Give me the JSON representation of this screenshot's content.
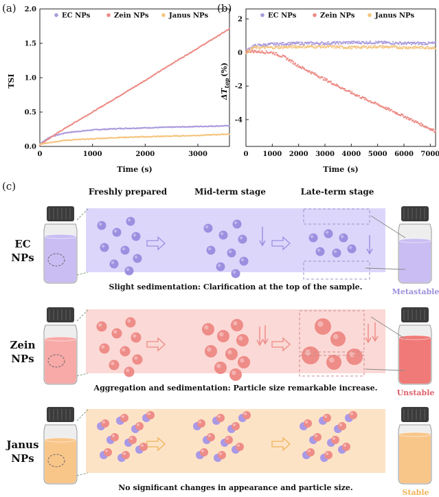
{
  "panel_a": {
    "label": "(a)",
    "chart_data": {
      "type": "line",
      "xlabel": "Time (s)",
      "ylabel": "TSI",
      "xlim": [
        0,
        3600
      ],
      "ylim": [
        0,
        2.0
      ],
      "xticks": [
        0,
        1000,
        2000,
        3000
      ],
      "yticks": [
        0.0,
        0.5,
        1.0,
        1.5,
        2.0
      ],
      "ytick_labels": [
        "0.0",
        "0.5",
        "1.0",
        "1.5",
        "2.0"
      ],
      "series": [
        {
          "name": "EC NPs",
          "color": "#a999dc",
          "x": [
            0,
            200,
            500,
            1000,
            1500,
            2000,
            2500,
            3000,
            3600
          ],
          "y": [
            0.04,
            0.14,
            0.2,
            0.24,
            0.26,
            0.27,
            0.28,
            0.29,
            0.3
          ]
        },
        {
          "name": "Zein NPs",
          "color": "#ec8a84",
          "x": [
            0,
            300,
            600,
            1000,
            1500,
            2000,
            2500,
            3000,
            3600
          ],
          "y": [
            0.02,
            0.18,
            0.32,
            0.5,
            0.73,
            0.96,
            1.2,
            1.43,
            1.71
          ]
        },
        {
          "name": "Janus NPs",
          "color": "#f5c47e",
          "x": [
            0,
            200,
            500,
            1000,
            1500,
            2000,
            2500,
            3000,
            3600
          ],
          "y": [
            0.03,
            0.06,
            0.09,
            0.11,
            0.13,
            0.14,
            0.15,
            0.16,
            0.18
          ]
        }
      ],
      "legend": [
        "EC NPs",
        "Zein NPs",
        "Janus NPs"
      ]
    }
  },
  "panel_b": {
    "label": "(b)",
    "chart_data": {
      "type": "scatter",
      "xlabel": "Time (s)",
      "ylabel_main": "ΔT",
      "ylabel_sub": "top",
      "ylabel_unit": "(%)",
      "xlim": [
        0,
        7200
      ],
      "ylim": [
        -5.6,
        2.6
      ],
      "xticks": [
        0,
        1000,
        2000,
        3000,
        4000,
        5000,
        6000,
        7000
      ],
      "yticks": [
        -4,
        -2,
        0,
        2
      ],
      "series": [
        {
          "name": "EC NPs",
          "color": "#a999dc",
          "x": [
            0,
            300,
            1000,
            2000,
            3000,
            4000,
            5000,
            6000,
            7200
          ],
          "y": [
            0.1,
            0.4,
            0.5,
            0.55,
            0.55,
            0.6,
            0.6,
            0.55,
            0.55
          ]
        },
        {
          "name": "Zein NPs",
          "color": "#ec8a84",
          "x": [
            0,
            500,
            1000,
            1500,
            2000,
            3000,
            4000,
            5000,
            6000,
            7200
          ],
          "y": [
            0.1,
            0.05,
            0.0,
            -0.3,
            -0.8,
            -1.6,
            -2.4,
            -3.1,
            -3.8,
            -4.7
          ]
        },
        {
          "name": "Janus NPs",
          "color": "#f5c47e",
          "x": [
            0,
            300,
            1000,
            2000,
            3000,
            4000,
            5000,
            6000,
            7200
          ],
          "y": [
            0.0,
            0.3,
            0.3,
            0.35,
            0.35,
            0.3,
            0.35,
            0.3,
            0.3
          ]
        }
      ],
      "legend": [
        "EC NPs",
        "Zein NPs",
        "Janus NPs"
      ]
    }
  },
  "panel_c": {
    "label": "(c)",
    "stages": [
      "Freshly prepared",
      "Mid-term stage",
      "Late-term stage"
    ],
    "rows": [
      {
        "name_line1": "EC",
        "name_line2": "NPs",
        "caption": "Slight sedimentation: Clarification at the top of the sample.",
        "status": "Metastable",
        "status_color": "#9c8fdb",
        "band_color": "#ddd6fb",
        "liquid": "#c9bdf3",
        "particle": "#9c8fe0"
      },
      {
        "name_line1": "Zein",
        "name_line2": "NPs",
        "caption": "Aggregation and sedimentation: Particle size remarkable increase.",
        "status": "Unstable",
        "status_color": "#e0606a",
        "band_color": "#fbd9d6",
        "liquid": "#f7aaa8",
        "particle": "#ee8c88"
      },
      {
        "name_line1": "Janus",
        "name_line2": "NPs",
        "caption": "No significant changes in appearance and particle size.",
        "status": "Stable",
        "status_color": "#f0b35a",
        "band_color": "#fde3c6",
        "liquid": "#f9c68a",
        "particle": "#ee8c88"
      }
    ]
  }
}
